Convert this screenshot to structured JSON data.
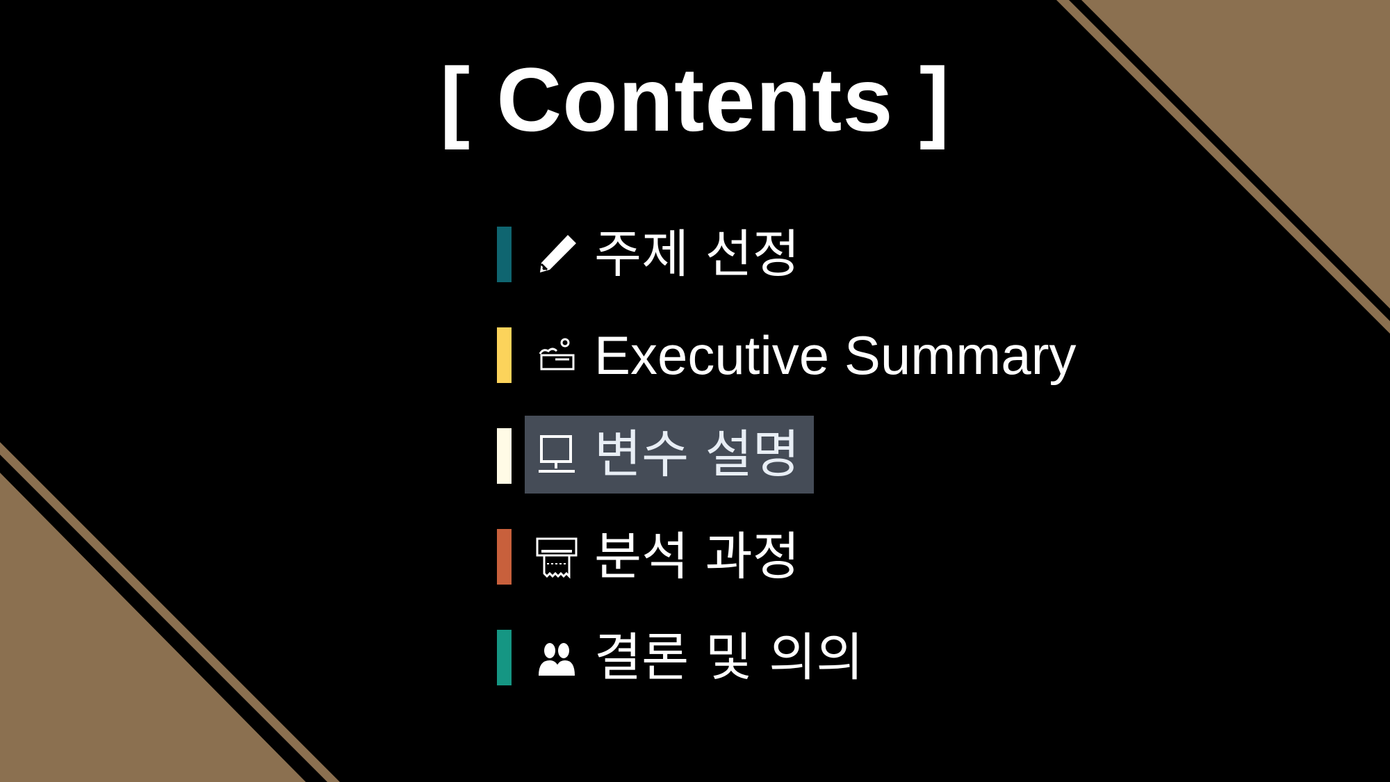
{
  "slide": {
    "title": "[ Contents ]",
    "colors": {
      "background": "#000000",
      "accent_gold": "#8b7050"
    }
  },
  "menu": {
    "items": [
      {
        "label": "주제 선정",
        "icon": "pencil-icon",
        "bar_color": "#0f6570",
        "selected": false
      },
      {
        "label": "Executive Summary",
        "icon": "soap-icon",
        "bar_color": "#fcd35b",
        "selected": false
      },
      {
        "label": "변수 설명",
        "icon": "computer-icon",
        "bar_color": "#fffbe6",
        "selected": true
      },
      {
        "label": "분석 과정",
        "icon": "receipt-printer-icon",
        "bar_color": "#c8603c",
        "selected": false
      },
      {
        "label": "결론 및 의의",
        "icon": "people-icon",
        "bar_color": "#159683",
        "selected": false
      }
    ]
  }
}
